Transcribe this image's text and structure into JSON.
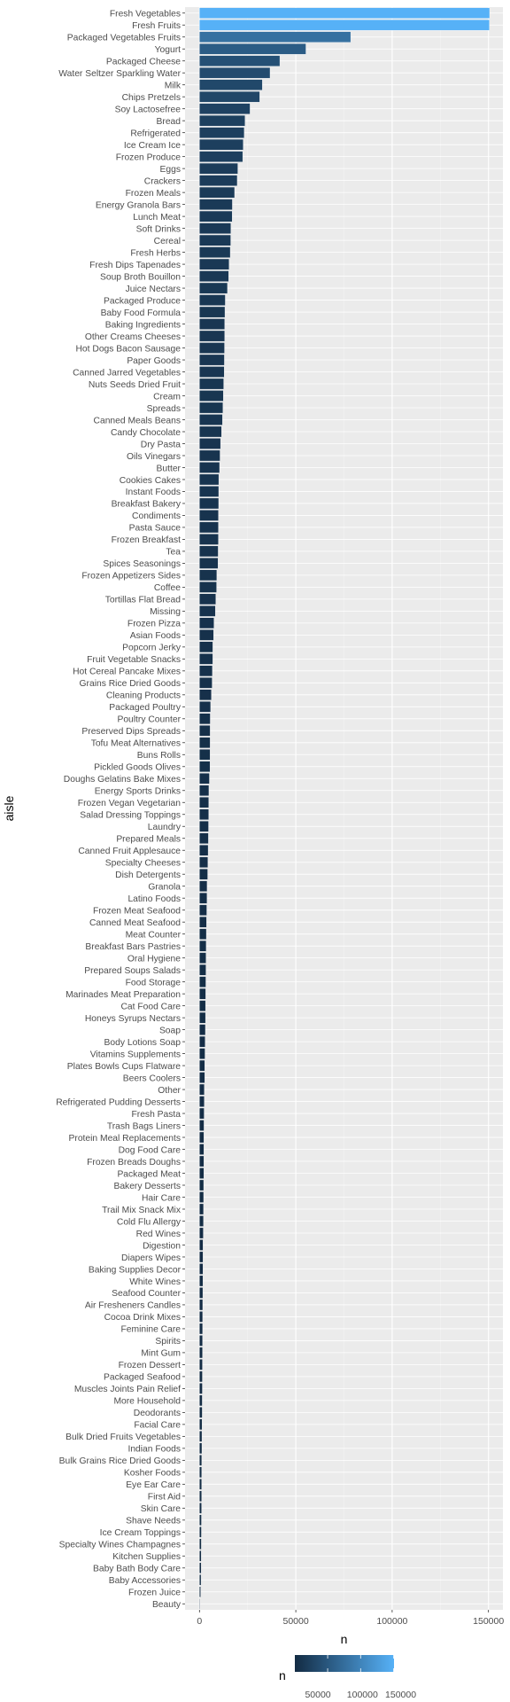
{
  "chart_data": {
    "type": "bar",
    "orientation": "horizontal",
    "xlabel": "n",
    "ylabel": "aisle",
    "xlim": [
      -7500,
      157500
    ],
    "xticks": [
      0,
      50000,
      100000,
      150000
    ],
    "xtick_labels": [
      "0",
      "50000",
      "100000",
      "150000"
    ],
    "grid": true,
    "legend": {
      "title": "n",
      "placement": "bottom",
      "type": "colorbar",
      "low_color": "#132B43",
      "high_color": "#56B1F7",
      "breaks": [
        50000,
        100000,
        150000
      ],
      "labels": [
        "50000",
        "100000",
        "150000"
      ]
    },
    "categories": [
      "Fresh Vegetables",
      "Fresh Fruits",
      "Packaged Vegetables Fruits",
      "Yogurt",
      "Packaged Cheese",
      "Water Seltzer Sparkling Water",
      "Milk",
      "Chips Pretzels",
      "Soy Lactosefree",
      "Bread",
      "Refrigerated",
      "Ice Cream Ice",
      "Frozen Produce",
      "Eggs",
      "Crackers",
      "Frozen Meals",
      "Energy Granola Bars",
      "Lunch Meat",
      "Soft Drinks",
      "Cereal",
      "Fresh Herbs",
      "Fresh Dips Tapenades",
      "Soup Broth Bouillon",
      "Juice Nectars",
      "Packaged Produce",
      "Baby Food Formula",
      "Baking Ingredients",
      "Other Creams Cheeses",
      "Hot Dogs Bacon Sausage",
      "Paper Goods",
      "Canned Jarred Vegetables",
      "Nuts Seeds Dried Fruit",
      "Cream",
      "Spreads",
      "Canned Meals Beans",
      "Candy Chocolate",
      "Dry Pasta",
      "Oils Vinegars",
      "Butter",
      "Cookies Cakes",
      "Instant Foods",
      "Breakfast Bakery",
      "Condiments",
      "Pasta Sauce",
      "Frozen Breakfast",
      "Tea",
      "Spices Seasonings",
      "Frozen Appetizers Sides",
      "Coffee",
      "Tortillas Flat Bread",
      "Missing",
      "Frozen Pizza",
      "Asian Foods",
      "Popcorn Jerky",
      "Fruit Vegetable Snacks",
      "Hot Cereal Pancake Mixes",
      "Grains Rice Dried Goods",
      "Cleaning Products",
      "Packaged Poultry",
      "Poultry Counter",
      "Preserved Dips Spreads",
      "Tofu Meat Alternatives",
      "Buns Rolls",
      "Pickled Goods Olives",
      "Doughs Gelatins Bake Mixes",
      "Energy Sports Drinks",
      "Frozen Vegan Vegetarian",
      "Salad Dressing Toppings",
      "Laundry",
      "Prepared Meals",
      "Canned Fruit Applesauce",
      "Specialty Cheeses",
      "Dish Detergents",
      "Granola",
      "Latino Foods",
      "Frozen Meat Seafood",
      "Canned Meat Seafood",
      "Meat Counter",
      "Breakfast Bars Pastries",
      "Oral Hygiene",
      "Prepared Soups Salads",
      "Food Storage",
      "Marinades Meat Preparation",
      "Cat Food Care",
      "Honeys Syrups Nectars",
      "Soap",
      "Body Lotions Soap",
      "Vitamins Supplements",
      "Plates Bowls Cups Flatware",
      "Beers Coolers",
      "Other",
      "Refrigerated Pudding Desserts",
      "Fresh Pasta",
      "Trash Bags Liners",
      "Protein Meal Replacements",
      "Dog Food Care",
      "Frozen Breads Doughs",
      "Packaged Meat",
      "Bakery Desserts",
      "Hair Care",
      "Trail Mix Snack Mix",
      "Cold Flu Allergy",
      "Red Wines",
      "Digestion",
      "Diapers Wipes",
      "Baking Supplies Decor",
      "White Wines",
      "Seafood Counter",
      "Air Fresheners Candles",
      "Cocoa Drink Mixes",
      "Feminine Care",
      "Spirits",
      "Mint Gum",
      "Frozen Dessert",
      "Packaged Seafood",
      "Muscles Joints Pain Relief",
      "More Household",
      "Deodorants",
      "Facial Care",
      "Bulk Dried Fruits Vegetables",
      "Indian Foods",
      "Bulk Grains Rice Dried Goods",
      "Kosher Foods",
      "Eye Ear Care",
      "First Aid",
      "Skin Care",
      "Shave Needs",
      "Ice Cream Toppings",
      "Specialty Wines Champagnes",
      "Kitchen Supplies",
      "Baby Bath Body Care",
      "Baby Accessories",
      "Frozen Juice",
      "Beauty"
    ],
    "values": [
      150600,
      150470,
      78490,
      55240,
      41700,
      36620,
      32640,
      31270,
      26240,
      23640,
      23230,
      22680,
      22430,
      19880,
      19590,
      18220,
      17060,
      16960,
      16280,
      16200,
      15960,
      15350,
      15130,
      14520,
      13390,
      13200,
      13090,
      13080,
      12980,
      12920,
      12830,
      12540,
      12380,
      12180,
      11940,
      11450,
      10930,
      10660,
      10420,
      10010,
      9970,
      9950,
      9810,
      9800,
      9790,
      9700,
      9610,
      8990,
      8860,
      8460,
      8250,
      7500,
      7330,
      6920,
      6910,
      6700,
      6550,
      6160,
      5780,
      5580,
      5540,
      5530,
      5490,
      5440,
      5140,
      4880,
      4800,
      4760,
      4690,
      4630,
      4480,
      4370,
      4240,
      3950,
      3920,
      3770,
      3680,
      3550,
      3480,
      3370,
      3340,
      3300,
      3240,
      3130,
      3120,
      3060,
      2910,
      2850,
      2720,
      2740,
      2520,
      2480,
      2400,
      2340,
      2290,
      2280,
      2270,
      2250,
      2160,
      2140,
      2100,
      2080,
      1960,
      1840,
      1820,
      1790,
      1760,
      1720,
      1670,
      1640,
      1630,
      1580,
      1530,
      1500,
      1480,
      1470,
      1430,
      1420,
      1300,
      1250,
      1230,
      1170,
      1150,
      1120,
      1100,
      1060,
      1010,
      990,
      960,
      910,
      880,
      800,
      590,
      280
    ]
  }
}
